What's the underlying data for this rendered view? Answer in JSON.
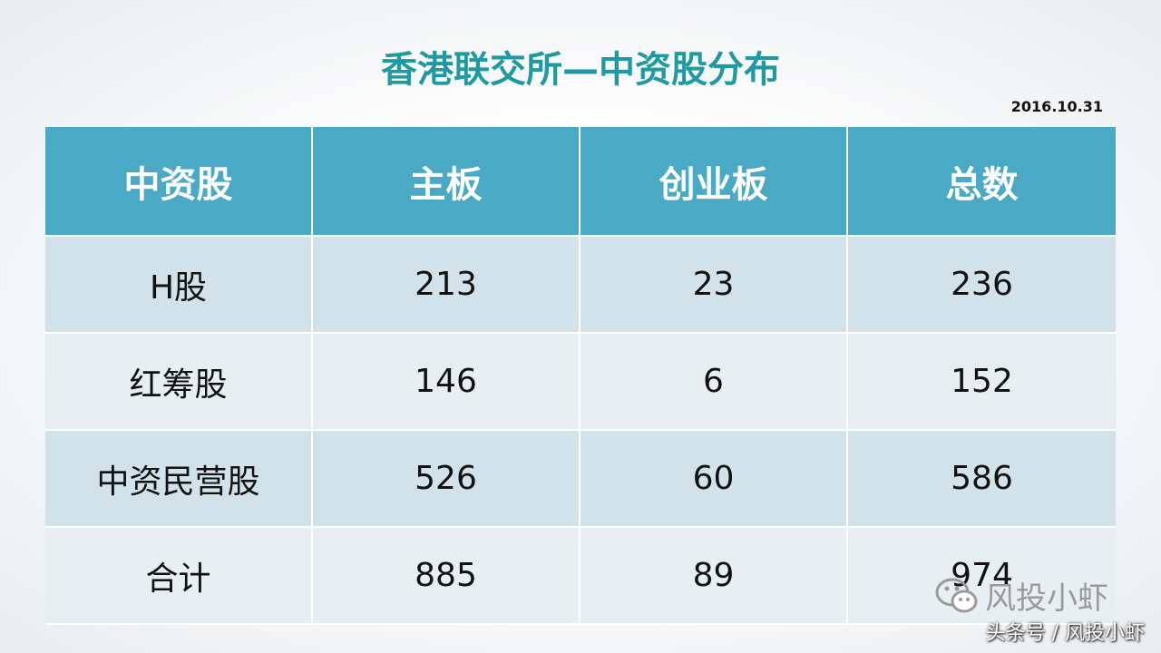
{
  "header": {
    "title": "香港联交所—中资股分布",
    "date": "2016.10.31"
  },
  "table": {
    "columns": [
      "中资股",
      "主板",
      "创业板",
      "总数"
    ],
    "rows": [
      [
        "H股",
        213,
        23,
        236
      ],
      [
        "红筹股",
        146,
        6,
        152
      ],
      [
        "中资民营股",
        526,
        60,
        586
      ],
      [
        "合计",
        885,
        89,
        974
      ]
    ]
  },
  "watermark": {
    "logo_text": "风投小虾",
    "footer": "头条号 / 风投小虾"
  }
}
